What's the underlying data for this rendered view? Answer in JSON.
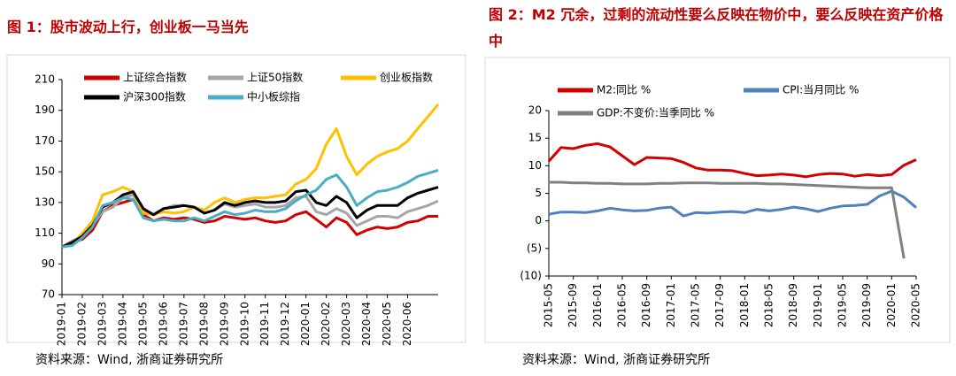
{
  "chart_data": [
    {
      "type": "line",
      "title": "图 1：股市波动上行，创业板一马当先",
      "source": "资料来源：Wind, 浙商证券研究所",
      "categories": [
        "2019-01",
        null,
        "2019-02",
        null,
        "2019-03",
        null,
        "2019-04",
        null,
        "2019-05",
        null,
        "2019-06",
        null,
        "2019-07",
        null,
        "2019-08",
        null,
        "2019-09",
        null,
        "2019-10",
        null,
        "2019-11",
        null,
        "2019-12",
        null,
        "2020-01",
        null,
        "2020-02",
        null,
        "2020-03",
        null,
        "2020-04",
        null,
        "2020-05",
        null,
        "2020-06",
        null,
        null,
        null
      ],
      "ylim": [
        70,
        210
      ],
      "yticks": [
        70,
        90,
        110,
        130,
        150,
        170,
        190,
        210
      ],
      "series": [
        {
          "name": "上证综合指数",
          "color": "#d20000",
          "values": [
            101,
            104,
            106,
            112,
            124,
            128,
            130,
            132,
            122,
            118,
            120,
            119,
            120,
            119,
            117,
            118,
            121,
            120,
            119,
            120,
            118,
            117,
            118,
            122,
            124,
            119,
            114,
            120,
            117,
            109,
            112,
            114,
            113,
            114,
            117,
            118,
            121,
            121
          ]
        },
        {
          "name": "上证50指数",
          "color": "#a6a6a6",
          "values": [
            101,
            105,
            108,
            115,
            124,
            127,
            133,
            135,
            124,
            122,
            126,
            128,
            128,
            127,
            123,
            125,
            129,
            127,
            128,
            129,
            127,
            127,
            128,
            133,
            134,
            124,
            122,
            126,
            123,
            115,
            118,
            121,
            121,
            120,
            124,
            126,
            128,
            131
          ]
        },
        {
          "name": "创业板指数",
          "color": "#ffc000",
          "values": [
            101,
            103,
            110,
            118,
            135,
            137,
            140,
            137,
            123,
            122,
            124,
            123,
            124,
            127,
            125,
            130,
            133,
            130,
            132,
            133,
            133,
            134,
            135,
            142,
            145,
            152,
            168,
            178,
            160,
            148,
            155,
            160,
            163,
            165,
            170,
            178,
            186,
            194
          ]
        },
        {
          "name": "沪深300指数",
          "color": "#000000",
          "values": [
            101,
            104,
            108,
            115,
            127,
            130,
            135,
            137,
            126,
            122,
            126,
            127,
            128,
            127,
            123,
            125,
            130,
            128,
            130,
            131,
            130,
            130,
            131,
            137,
            138,
            130,
            128,
            134,
            130,
            120,
            125,
            128,
            128,
            128,
            133,
            136,
            138,
            140
          ]
        },
        {
          "name": "中小板综指",
          "color": "#4bacc6",
          "values": [
            101,
            102,
            107,
            114,
            128,
            130,
            133,
            132,
            120,
            118,
            119,
            118,
            118,
            120,
            118,
            121,
            124,
            122,
            123,
            125,
            124,
            124,
            126,
            131,
            135,
            138,
            145,
            148,
            140,
            128,
            133,
            137,
            138,
            140,
            143,
            147,
            149,
            151
          ]
        }
      ]
    },
    {
      "type": "line",
      "title": "图 2：M2 冗余，过剩的流动性要么反映在物价中，要么反映在资产价格中",
      "source": "资料来源：Wind, 浙商证券研究所",
      "categories": [
        "2015-05",
        null,
        "2015-09",
        null,
        "2016-01",
        null,
        "2016-05",
        null,
        "2016-09",
        null,
        "2017-01",
        null,
        "2017-05",
        null,
        "2017-09",
        null,
        "2018-01",
        null,
        "2018-05",
        null,
        "2018-09",
        null,
        "2019-01",
        null,
        "2019-05",
        null,
        "2019-09",
        null,
        "2020-01",
        null,
        "2020-05"
      ],
      "ylim": [
        -10,
        20
      ],
      "yticks": [
        {
          "value": -10,
          "label": "(10)"
        },
        {
          "value": -5,
          "label": "(5)"
        },
        0,
        5,
        10,
        15,
        20
      ],
      "series": [
        {
          "name": "M2:同比 %",
          "color": "#d20000",
          "values": [
            10.8,
            13.3,
            13.1,
            13.7,
            14.0,
            13.4,
            11.8,
            10.2,
            11.5,
            11.4,
            11.3,
            10.6,
            9.6,
            9.2,
            9.2,
            9.1,
            8.6,
            8.2,
            8.3,
            8.5,
            8.3,
            8.0,
            8.4,
            8.6,
            8.5,
            8.1,
            8.4,
            8.2,
            8.4,
            10.1,
            11.1
          ]
        },
        {
          "name": "CPI:当月同比 %",
          "color": "#4f81bd",
          "values": [
            1.2,
            1.6,
            1.6,
            1.5,
            1.8,
            2.3,
            2.0,
            1.8,
            1.9,
            2.3,
            2.5,
            0.9,
            1.5,
            1.4,
            1.6,
            1.7,
            1.5,
            2.1,
            1.8,
            2.1,
            2.5,
            2.2,
            1.7,
            2.3,
            2.7,
            2.8,
            3.0,
            4.5,
            5.4,
            4.3,
            2.4
          ]
        },
        {
          "name": "GDP:不变价:当季同比 %",
          "color": "#808080",
          "values": [
            7.0,
            7.0,
            6.9,
            6.9,
            6.8,
            6.8,
            6.7,
            6.7,
            6.7,
            6.8,
            6.8,
            6.9,
            6.9,
            6.9,
            6.8,
            6.8,
            6.8,
            6.8,
            6.7,
            6.7,
            6.6,
            6.5,
            6.4,
            6.3,
            6.2,
            6.1,
            6.0,
            6.0,
            6.0,
            -6.8,
            null
          ]
        }
      ]
    }
  ]
}
